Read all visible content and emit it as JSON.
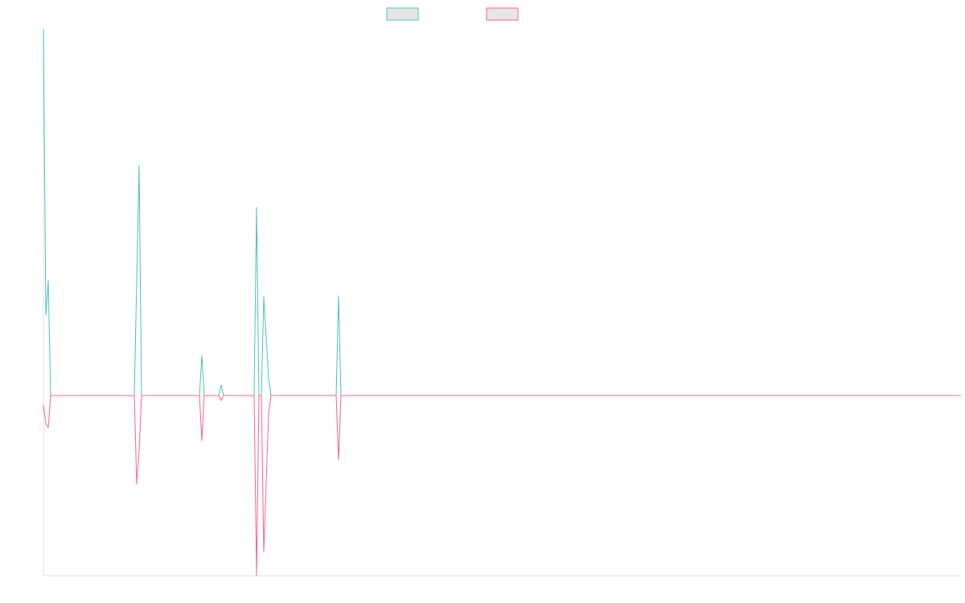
{
  "chart_data": {
    "type": "line",
    "x": [
      0,
      3,
      6,
      9,
      113,
      116,
      119,
      122,
      194,
      197,
      200,
      218,
      221,
      224,
      262,
      265,
      268,
      271,
      274,
      280,
      283,
      364,
      367,
      370,
      1141
    ],
    "series": [
      {
        "color": "#4bc0c0",
        "values": [
          456,
          100,
          143,
          0,
          0,
          143,
          286,
          0,
          0,
          50,
          0,
          0,
          13,
          0,
          0,
          234,
          0,
          0,
          123,
          22,
          0,
          0,
          124,
          0,
          0
        ]
      },
      {
        "color": "#ff6384",
        "values": [
          -11,
          -35,
          -40,
          0,
          0,
          -110,
          -68,
          0,
          0,
          -56,
          0,
          0,
          -6,
          0,
          0,
          -224,
          0,
          0,
          -194,
          -23,
          0,
          0,
          -80,
          0,
          0
        ]
      }
    ],
    "xlim": [
      0,
      1141
    ],
    "ylim": [
      -224,
      456
    ]
  }
}
